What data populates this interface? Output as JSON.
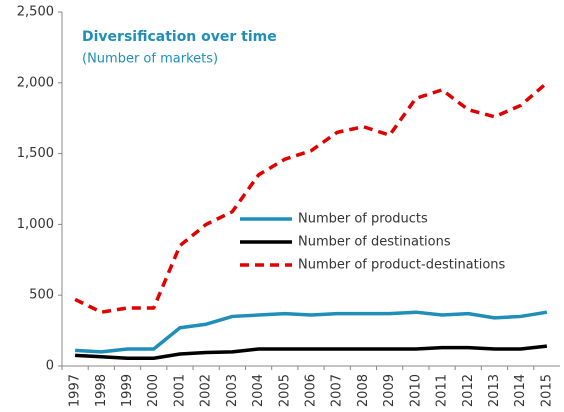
{
  "chart_data": {
    "type": "line",
    "title": "Diversification over time",
    "subtitle": "(Number of markets)",
    "categories": [
      "1997",
      "1998",
      "1999",
      "2000",
      "2001",
      "2002",
      "2003",
      "2004",
      "2005",
      "2006",
      "2007",
      "2008",
      "2009",
      "2010",
      "2011",
      "2012",
      "2013",
      "2014",
      "2015"
    ],
    "series": [
      {
        "name": "Number of products",
        "color": "#1f8fb8",
        "dashed": false,
        "values": [
          110,
          100,
          120,
          120,
          270,
          295,
          350,
          360,
          370,
          360,
          370,
          370,
          370,
          380,
          360,
          370,
          340,
          350,
          380
        ]
      },
      {
        "name": "Number of destinations",
        "color": "#000000",
        "dashed": false,
        "values": [
          75,
          65,
          55,
          55,
          85,
          95,
          100,
          120,
          120,
          120,
          120,
          120,
          120,
          120,
          130,
          130,
          120,
          120,
          140
        ]
      },
      {
        "name": "Number of product-destinations",
        "color": "#e00000",
        "dashed": true,
        "values": [
          470,
          380,
          410,
          410,
          850,
          1000,
          1090,
          1350,
          1460,
          1520,
          1650,
          1690,
          1630,
          1890,
          1950,
          1810,
          1760,
          1840,
          2000
        ]
      }
    ],
    "ylim": [
      0,
      2500
    ],
    "yticks": [
      0,
      500,
      {
        "value": 1000,
        "label": "1,000"
      },
      {
        "value": 1500,
        "label": "1,500"
      },
      {
        "value": 2000,
        "label": "2,000"
      },
      {
        "value": 2500,
        "label": "2,500"
      }
    ],
    "grid": false
  }
}
